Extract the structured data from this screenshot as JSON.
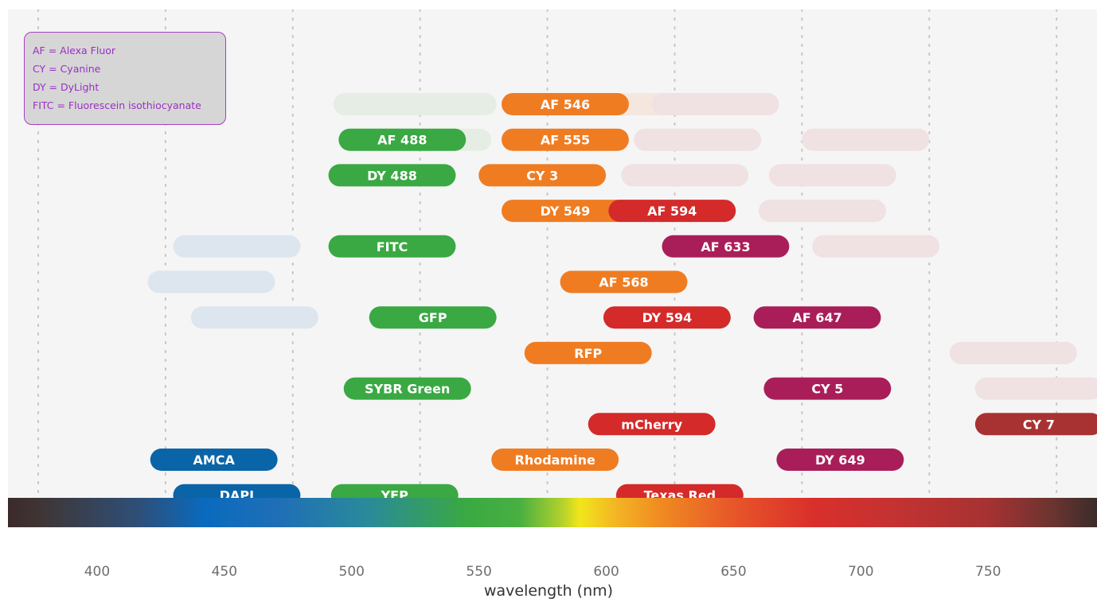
{
  "chart_data": {
    "type": "range_bars",
    "xlabel": "wavelength (nm)",
    "x_ticks": [
      400,
      450,
      500,
      550,
      600,
      650,
      700,
      750
    ],
    "xlim": [
      375,
      792
    ],
    "gridlines_nm": [
      375,
      425,
      475,
      525,
      575,
      625,
      675,
      725,
      775
    ],
    "legend_lines": [
      "AF = Alexa Fluor",
      "CY = Cyanine",
      "DY = DyLight",
      "FITC = Fluorescein isothiocyanate"
    ],
    "colors": {
      "blue": "#0a64a8",
      "green": "#3aa843",
      "orange": "#f07c22",
      "red": "#d42a2a",
      "magenta": "#a91e58",
      "darkred": "#a83232"
    },
    "bars": [
      {
        "label": "AMCA",
        "start": 419,
        "end": 469,
        "row": 10,
        "color": "blue"
      },
      {
        "label": "DAPI",
        "start": 428,
        "end": 478,
        "row": 11,
        "color": "blue"
      },
      {
        "label": "AF 488",
        "start": 493,
        "end": 543,
        "row": 1,
        "color": "green"
      },
      {
        "label": "DY 488",
        "start": 489,
        "end": 539,
        "row": 2,
        "color": "green"
      },
      {
        "label": "FITC",
        "start": 489,
        "end": 539,
        "row": 4,
        "color": "green"
      },
      {
        "label": "GFP",
        "start": 505,
        "end": 555,
        "row": 6,
        "color": "green"
      },
      {
        "label": "SYBR Green",
        "start": 495,
        "end": 545,
        "row": 8,
        "color": "green"
      },
      {
        "label": "YFP",
        "start": 490,
        "end": 540,
        "row": 11,
        "color": "green"
      },
      {
        "label": "AF 546",
        "start": 557,
        "end": 607,
        "row": 0,
        "color": "orange"
      },
      {
        "label": "AF 555",
        "start": 557,
        "end": 607,
        "row": 1,
        "color": "orange"
      },
      {
        "label": "CY 3",
        "start": 548,
        "end": 598,
        "row": 2,
        "color": "orange"
      },
      {
        "label": "DY 549",
        "start": 557,
        "end": 607,
        "row": 3,
        "color": "orange"
      },
      {
        "label": "AF 568",
        "start": 580,
        "end": 630,
        "row": 5,
        "color": "orange"
      },
      {
        "label": "RFP",
        "start": 566,
        "end": 616,
        "row": 7,
        "color": "orange"
      },
      {
        "label": "Rhodamine",
        "start": 553,
        "end": 603,
        "row": 10,
        "color": "orange"
      },
      {
        "label": "AF 594",
        "start": 599,
        "end": 649,
        "row": 3,
        "color": "red"
      },
      {
        "label": "DY 594",
        "start": 597,
        "end": 647,
        "row": 6,
        "color": "red"
      },
      {
        "label": "mCherry",
        "start": 591,
        "end": 641,
        "row": 9,
        "color": "red"
      },
      {
        "label": "Texas Red",
        "start": 602,
        "end": 652,
        "row": 11,
        "color": "red"
      },
      {
        "label": "AF 633",
        "start": 620,
        "end": 670,
        "row": 4,
        "color": "magenta"
      },
      {
        "label": "AF 647",
        "start": 656,
        "end": 706,
        "row": 6,
        "color": "magenta"
      },
      {
        "label": "CY 5",
        "start": 660,
        "end": 710,
        "row": 8,
        "color": "magenta"
      },
      {
        "label": "DY 649",
        "start": 665,
        "end": 715,
        "row": 10,
        "color": "magenta"
      },
      {
        "label": "CY 7",
        "start": 743,
        "end": 793,
        "row": 9,
        "color": "darkred"
      }
    ],
    "faded_bars": [
      {
        "start": 428,
        "end": 478,
        "row": 4,
        "color": "#dde6ee"
      },
      {
        "start": 418,
        "end": 468,
        "row": 5,
        "color": "#dde6ee"
      },
      {
        "start": 435,
        "end": 485,
        "row": 6,
        "color": "#dde6ee"
      },
      {
        "start": 505,
        "end": 555,
        "row": 0,
        "color": "#e5ede5"
      },
      {
        "start": 491,
        "end": 541,
        "row": 0,
        "color": "#e5ede5"
      },
      {
        "start": 503,
        "end": 553,
        "row": 1,
        "color": "#e5ede5"
      },
      {
        "start": 584,
        "end": 634,
        "row": 0,
        "color": "#f5e7de"
      },
      {
        "start": 559,
        "end": 609,
        "row": 0,
        "color": "#f5e7de"
      },
      {
        "start": 616,
        "end": 666,
        "row": 0,
        "color": "#f0e1e3"
      },
      {
        "start": 609,
        "end": 659,
        "row": 1,
        "color": "#f0e1e3"
      },
      {
        "start": 604,
        "end": 654,
        "row": 2,
        "color": "#f0e1e3"
      },
      {
        "start": 675,
        "end": 725,
        "row": 1,
        "color": "#f0e1e3"
      },
      {
        "start": 662,
        "end": 712,
        "row": 2,
        "color": "#f0e1e3"
      },
      {
        "start": 658,
        "end": 708,
        "row": 3,
        "color": "#f0e1e3"
      },
      {
        "start": 679,
        "end": 729,
        "row": 4,
        "color": "#f0e1e3"
      },
      {
        "start": 733,
        "end": 783,
        "row": 7,
        "color": "#f0e1e3"
      },
      {
        "start": 743,
        "end": 793,
        "row": 8,
        "color": "#f0e1e3"
      }
    ]
  }
}
